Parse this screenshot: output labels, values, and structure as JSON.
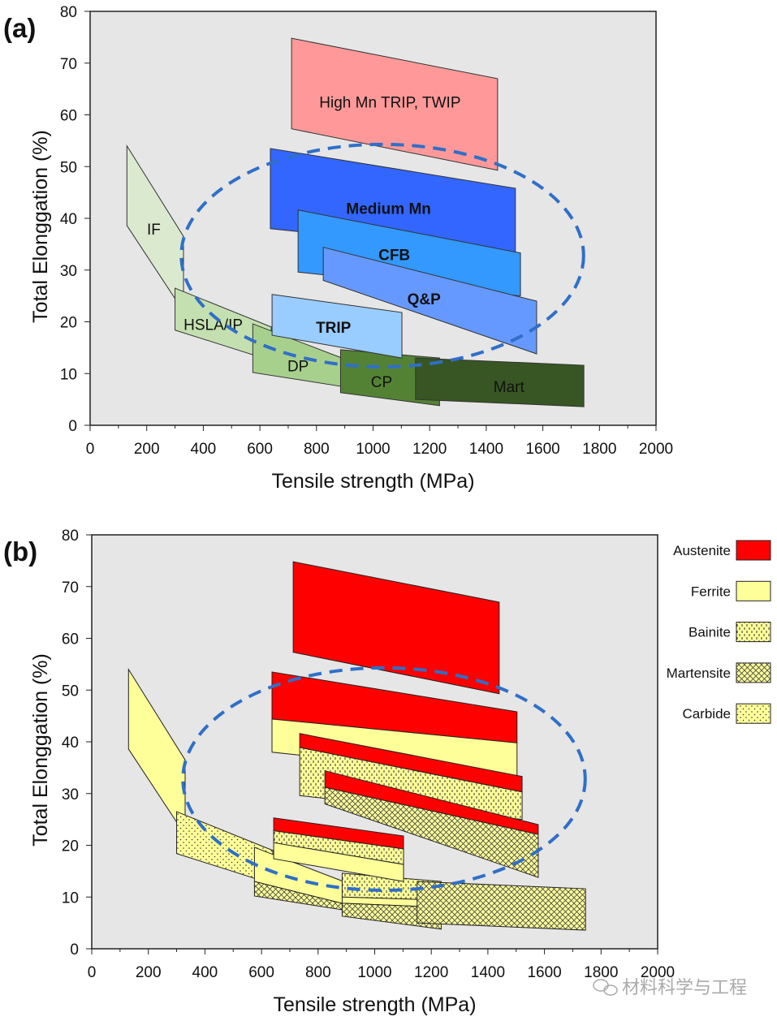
{
  "colors": {
    "plot_bg": "#e6e6e6",
    "ellipse": "#2f6fc8",
    "austenite": "#ff0000",
    "ferrite": "#ffff99"
  },
  "watermark": "材料科学与工程",
  "chart_data": [
    {
      "panel": "(a)",
      "type": "area",
      "xlabel": "Tensile strength (MPa)",
      "ylabel": "Total Elonggation (%)",
      "xlim": [
        0,
        2000
      ],
      "ylim": [
        0,
        80
      ],
      "xticks": [
        0,
        200,
        400,
        600,
        800,
        1000,
        1200,
        1400,
        1600,
        1800,
        2000
      ],
      "yticks": [
        0,
        10,
        20,
        30,
        40,
        50,
        60,
        70,
        80
      ],
      "ellipse": {
        "center": [
          1033,
          32.8
        ],
        "radius": [
          711,
          21.5
        ]
      },
      "regions": [
        {
          "name": "IF",
          "color": "#dbe9cf",
          "bold": false,
          "x": [
            130,
            330
          ],
          "top": [
            54,
            36.5
          ],
          "bottom": [
            38.6,
            22
          ],
          "label_at": [
            225,
            38
          ]
        },
        {
          "name": "HSLA/IP",
          "color": "#c5e0b0",
          "bold": false,
          "x": [
            300,
            640
          ],
          "top": [
            26.5,
            19
          ],
          "bottom": [
            18.4,
            12.5
          ],
          "label_at": [
            435,
            19.5
          ]
        },
        {
          "name": "DP",
          "color": "#a8d08d",
          "bold": false,
          "x": [
            575,
            890
          ],
          "top": [
            19.6,
            13
          ],
          "bottom": [
            10.2,
            7.5
          ],
          "label_at": [
            735,
            11.5
          ]
        },
        {
          "name": "CP",
          "color": "#548235",
          "bold": false,
          "x": [
            885,
            1235
          ],
          "top": [
            14.6,
            13
          ],
          "bottom": [
            6.3,
            3.8
          ],
          "label_at": [
            1030,
            8.5
          ]
        },
        {
          "name": "Mart",
          "color": "#375623",
          "bold": false,
          "x": [
            1150,
            1745
          ],
          "top": [
            13,
            11.6
          ],
          "bottom": [
            5,
            3.6
          ],
          "label_at": [
            1480,
            7.5
          ]
        },
        {
          "name": "High Mn TRIP, TWIP",
          "color": "#ff9999",
          "bold": false,
          "x": [
            712,
            1440
          ],
          "top": [
            74.8,
            67
          ],
          "bottom": [
            57.3,
            49.3
          ],
          "label_at": [
            1060,
            62.5
          ]
        },
        {
          "name": "Medium Mn",
          "color": "#3366ff",
          "bold": true,
          "x": [
            637,
            1503
          ],
          "top": [
            53.5,
            45.8
          ],
          "bottom": [
            38,
            33
          ],
          "label_at": [
            1055,
            42
          ]
        },
        {
          "name": "CFB",
          "color": "#3399ff",
          "bold": true,
          "x": [
            735,
            1521
          ],
          "top": [
            41.6,
            33.3
          ],
          "bottom": [
            29.6,
            25
          ],
          "label_at": [
            1075,
            33
          ]
        },
        {
          "name": "Q&P",
          "color": "#6699ff",
          "bold": true,
          "x": [
            824,
            1578
          ],
          "top": [
            34.4,
            24
          ],
          "bottom": [
            28,
            13.8
          ],
          "label_at": [
            1180,
            24.5
          ]
        },
        {
          "name": "TRIP",
          "color": "#99ccff",
          "bold": true,
          "x": [
            643,
            1102
          ],
          "top": [
            25.3,
            21.8
          ],
          "bottom": [
            17.4,
            13
          ],
          "label_at": [
            860,
            19
          ]
        }
      ]
    },
    {
      "panel": "(b)",
      "type": "area",
      "xlabel": "Tensile strength (MPa)",
      "ylabel": "Total Elonggation (%)",
      "xlim": [
        0,
        2000
      ],
      "ylim": [
        0,
        80
      ],
      "xticks": [
        0,
        200,
        400,
        600,
        800,
        1000,
        1200,
        1400,
        1600,
        1800,
        2000
      ],
      "yticks": [
        0,
        10,
        20,
        30,
        40,
        50,
        60,
        70,
        80
      ],
      "ellipse": {
        "center": [
          1033,
          32.8
        ],
        "radius": [
          711,
          21.5
        ]
      },
      "legend": {
        "placement": "right-outside",
        "entries": [
          "Austenite",
          "Ferrite",
          "Bainite",
          "Martensite",
          "Carbide"
        ]
      },
      "regions": [
        {
          "name": "IF",
          "x": [
            130,
            330
          ],
          "layers": [
            {
              "phase": "Ferrite",
              "top": [
                54,
                36.5
              ],
              "bottom": [
                38.6,
                22
              ]
            }
          ]
        },
        {
          "name": "HSLA/IP",
          "x": [
            300,
            640
          ],
          "layers": [
            {
              "phase": "Carbide",
              "top": [
                26.5,
                19
              ],
              "bottom": [
                18.4,
                12.5
              ]
            }
          ]
        },
        {
          "name": "DP",
          "x": [
            575,
            890
          ],
          "layers": [
            {
              "phase": "Ferrite",
              "top": [
                19.6,
                13
              ],
              "bottom": [
                13,
                8.7
              ]
            },
            {
              "phase": "Martensite",
              "top": [
                13,
                8.7
              ],
              "bottom": [
                10.2,
                7.5
              ]
            }
          ]
        },
        {
          "name": "CP",
          "x": [
            885,
            1235
          ],
          "layers": [
            {
              "phase": "Bainite",
              "top": [
                14.6,
                13
              ],
              "bottom": [
                10,
                9.4
              ]
            },
            {
              "phase": "Ferrite",
              "top": [
                10,
                9.4
              ],
              "bottom": [
                8.8,
                8
              ]
            },
            {
              "phase": "Martensite",
              "top": [
                8.8,
                8
              ],
              "bottom": [
                6.3,
                3.8
              ]
            }
          ]
        },
        {
          "name": "Mart",
          "x": [
            1150,
            1745
          ],
          "layers": [
            {
              "phase": "Martensite",
              "top": [
                13,
                11.6
              ],
              "bottom": [
                5,
                3.6
              ]
            }
          ]
        },
        {
          "name": "High Mn TRIP, TWIP",
          "x": [
            712,
            1440
          ],
          "layers": [
            {
              "phase": "Austenite",
              "top": [
                74.8,
                67
              ],
              "bottom": [
                57.3,
                49.3
              ]
            }
          ]
        },
        {
          "name": "Medium Mn",
          "x": [
            637,
            1503
          ],
          "layers": [
            {
              "phase": "Austenite",
              "top": [
                53.5,
                45.8
              ],
              "bottom": [
                44.4,
                39.8
              ]
            },
            {
              "phase": "Ferrite",
              "top": [
                44.4,
                39.8
              ],
              "bottom": [
                38,
                33
              ]
            }
          ]
        },
        {
          "name": "CFB",
          "x": [
            735,
            1521
          ],
          "layers": [
            {
              "phase": "Austenite",
              "top": [
                41.6,
                33.3
              ],
              "bottom": [
                38.9,
                30.3
              ]
            },
            {
              "phase": "Bainite",
              "top": [
                38.9,
                30.3
              ],
              "bottom": [
                29.6,
                25
              ]
            }
          ]
        },
        {
          "name": "Q&P",
          "x": [
            824,
            1578
          ],
          "layers": [
            {
              "phase": "Austenite",
              "top": [
                34.4,
                24
              ],
              "bottom": [
                31.2,
                22.1
              ]
            },
            {
              "phase": "Martensite",
              "top": [
                31.2,
                22.1
              ],
              "bottom": [
                28,
                13.8
              ]
            }
          ]
        },
        {
          "name": "TRIP",
          "x": [
            643,
            1102
          ],
          "layers": [
            {
              "phase": "Austenite",
              "top": [
                25.3,
                21.8
              ],
              "bottom": [
                22.8,
                19.3
              ]
            },
            {
              "phase": "Bainite",
              "top": [
                22.8,
                19.3
              ],
              "bottom": [
                20.5,
                16.3
              ]
            },
            {
              "phase": "Ferrite",
              "top": [
                20.5,
                16.3
              ],
              "bottom": [
                17.4,
                13
              ]
            }
          ]
        }
      ]
    }
  ]
}
